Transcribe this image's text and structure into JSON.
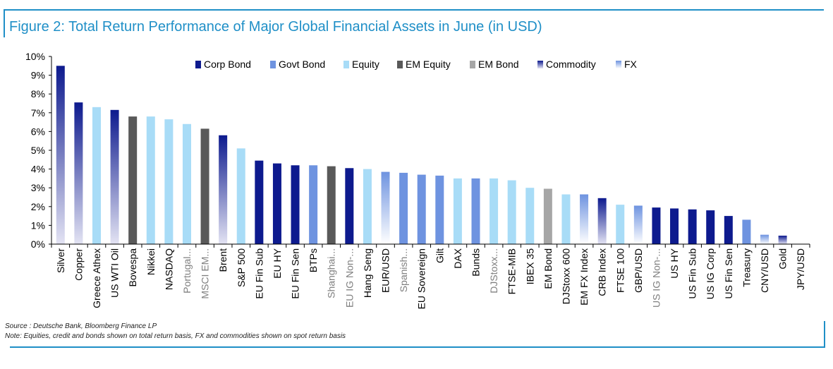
{
  "title": "Figure 2: Total Return Performance of Major Global Financial Assets in June (in USD)",
  "source": "Source : Deutsche Bank, Bloomberg Finance LP",
  "note": "Note: Equities, credit and bonds shown on total return basis, FX and commodities shown on spot return basis",
  "colors": {
    "corp_bond": "#0d1a8e",
    "govt_bond": "#6e93e0",
    "equity": "#a8dcf7",
    "em_equity": "#595959",
    "em_bond": "#a6a6a6",
    "commodity_top": "#0d1a8e",
    "commodity_bottom": "#e3e3f3",
    "fx_top": "#6e93e0",
    "fx_bottom": "#ffffff",
    "frame": "#1f8fc7"
  },
  "chart_data": {
    "type": "bar",
    "ylim": [
      0,
      10
    ],
    "y_ticks": [
      "0%",
      "1%",
      "2%",
      "3%",
      "4%",
      "5%",
      "6%",
      "7%",
      "8%",
      "9%",
      "10%"
    ],
    "legend": [
      {
        "name": "Corp Bond",
        "key": "corp_bond"
      },
      {
        "name": "Govt Bond",
        "key": "govt_bond"
      },
      {
        "name": "Equity",
        "key": "equity"
      },
      {
        "name": "EM Equity",
        "key": "em_equity"
      },
      {
        "name": "EM Bond",
        "key": "em_bond"
      },
      {
        "name": "Commodity",
        "key": "commodity"
      },
      {
        "name": "FX",
        "key": "fx"
      }
    ],
    "legend_position": "top",
    "categories": [
      "Silver",
      "Copper",
      "Greece Athex",
      "US WTI Oil",
      "Bovespa",
      "Nikkei",
      "NASDAQ",
      "Portugal...",
      "MSCI EM...",
      "Brent",
      "S&P 500",
      "EU Fin Sub",
      "EU HY",
      "EU Fin Sen",
      "BTPs",
      "Shanghai...",
      "EU IG Non-...",
      "Hang Seng",
      "EUR/USD",
      "Spanish...",
      "EU Sovereign",
      "Gilt",
      "DAX",
      "Bunds",
      "DJStoxx...",
      "FTSE-MIB",
      "IBEX 35",
      "EM Bond",
      "DJStoxx 600",
      "EM FX Index",
      "CRB Index",
      "FTSE 100",
      "GBP/USD",
      "US IG Non-...",
      "US HY",
      "US Fin Sub",
      "US IG Corp",
      "US Fin Sen",
      "Treasury",
      "CNY/USD",
      "Gold",
      "JPY/USD"
    ],
    "values": [
      9.5,
      7.55,
      7.3,
      7.15,
      6.8,
      6.8,
      6.65,
      6.4,
      6.15,
      5.8,
      5.1,
      4.45,
      4.3,
      4.2,
      4.2,
      4.15,
      4.05,
      4.0,
      3.85,
      3.8,
      3.7,
      3.65,
      3.5,
      3.5,
      3.5,
      3.4,
      3.0,
      2.95,
      2.65,
      2.65,
      2.45,
      2.1,
      2.05,
      1.95,
      1.9,
      1.85,
      1.8,
      1.5,
      1.3,
      0.5,
      0.45,
      0.0
    ],
    "asset_class": [
      "commodity",
      "commodity",
      "equity",
      "commodity",
      "em_equity",
      "equity",
      "equity",
      "equity",
      "em_equity",
      "commodity",
      "equity",
      "corp_bond",
      "corp_bond",
      "corp_bond",
      "govt_bond",
      "em_equity",
      "corp_bond",
      "equity",
      "fx",
      "govt_bond",
      "govt_bond",
      "govt_bond",
      "equity",
      "govt_bond",
      "equity",
      "equity",
      "equity",
      "em_bond",
      "equity",
      "fx",
      "commodity",
      "equity",
      "fx",
      "corp_bond",
      "corp_bond",
      "corp_bond",
      "corp_bond",
      "corp_bond",
      "govt_bond",
      "fx",
      "commodity",
      "fx"
    ]
  }
}
